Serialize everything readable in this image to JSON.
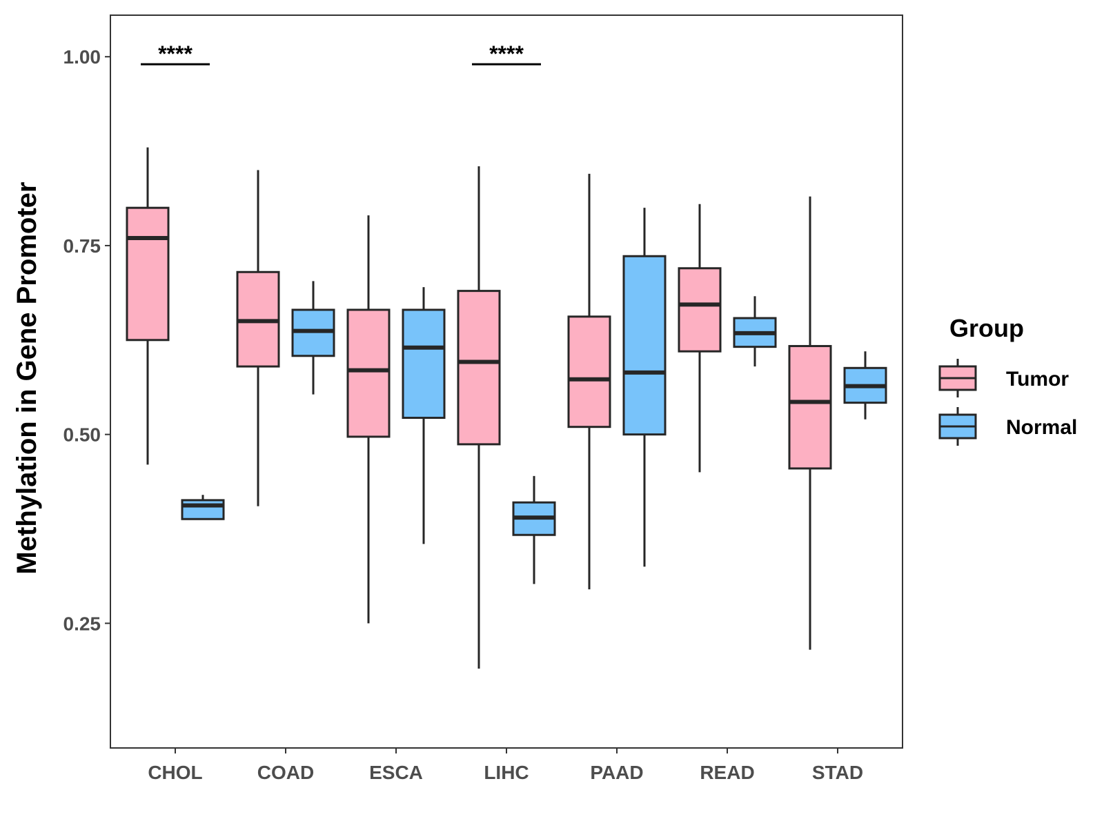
{
  "chart_data": {
    "type": "boxplot",
    "title": "",
    "xlabel": "",
    "ylabel": "Methylation in Gene Promoter",
    "ylim": [
      0.085,
      1.055
    ],
    "yticks": [
      0.25,
      0.5,
      0.75,
      1.0
    ],
    "ytick_labels": [
      "0.25",
      "0.50",
      "0.75",
      "1.00"
    ],
    "categories": [
      "CHOL",
      "COAD",
      "ESCA",
      "LIHC",
      "PAAD",
      "READ",
      "STAD"
    ],
    "legend": {
      "title": "Group",
      "position": "right",
      "items": [
        {
          "label": "Tumor",
          "color": "#FDB0C2"
        },
        {
          "label": "Normal",
          "color": "#78C3FA"
        }
      ]
    },
    "series": [
      {
        "name": "Tumor",
        "color": "#FDB0C2",
        "boxes": [
          {
            "category": "CHOL",
            "min": 0.46,
            "q1": 0.625,
            "median": 0.76,
            "q3": 0.8,
            "max": 0.88
          },
          {
            "category": "COAD",
            "min": 0.405,
            "q1": 0.59,
            "median": 0.65,
            "q3": 0.715,
            "max": 0.85
          },
          {
            "category": "ESCA",
            "min": 0.25,
            "q1": 0.497,
            "median": 0.585,
            "q3": 0.665,
            "max": 0.79
          },
          {
            "category": "LIHC",
            "min": 0.19,
            "q1": 0.487,
            "median": 0.596,
            "q3": 0.69,
            "max": 0.855
          },
          {
            "category": "PAAD",
            "min": 0.295,
            "q1": 0.51,
            "median": 0.573,
            "q3": 0.656,
            "max": 0.845
          },
          {
            "category": "READ",
            "min": 0.45,
            "q1": 0.61,
            "median": 0.672,
            "q3": 0.72,
            "max": 0.805
          },
          {
            "category": "STAD",
            "min": 0.215,
            "q1": 0.455,
            "median": 0.543,
            "q3": 0.617,
            "max": 0.815
          }
        ]
      },
      {
        "name": "Normal",
        "color": "#78C3FA",
        "boxes": [
          {
            "category": "CHOL",
            "min": 0.388,
            "q1": 0.388,
            "median": 0.406,
            "q3": 0.413,
            "max": 0.42
          },
          {
            "category": "COAD",
            "min": 0.553,
            "q1": 0.604,
            "median": 0.637,
            "q3": 0.665,
            "max": 0.703
          },
          {
            "category": "ESCA",
            "min": 0.355,
            "q1": 0.522,
            "median": 0.615,
            "q3": 0.665,
            "max": 0.695
          },
          {
            "category": "LIHC",
            "min": 0.302,
            "q1": 0.367,
            "median": 0.39,
            "q3": 0.41,
            "max": 0.445
          },
          {
            "category": "PAAD",
            "min": 0.325,
            "q1": 0.5,
            "median": 0.582,
            "q3": 0.736,
            "max": 0.8
          },
          {
            "category": "READ",
            "min": 0.59,
            "q1": 0.616,
            "median": 0.634,
            "q3": 0.654,
            "max": 0.683
          },
          {
            "category": "STAD",
            "min": 0.52,
            "q1": 0.542,
            "median": 0.564,
            "q3": 0.588,
            "max": 0.61
          }
        ]
      }
    ],
    "annotations": [
      {
        "category": "CHOL",
        "text": "****",
        "y": 0.99
      },
      {
        "category": "LIHC",
        "text": "****",
        "y": 0.99
      }
    ]
  }
}
